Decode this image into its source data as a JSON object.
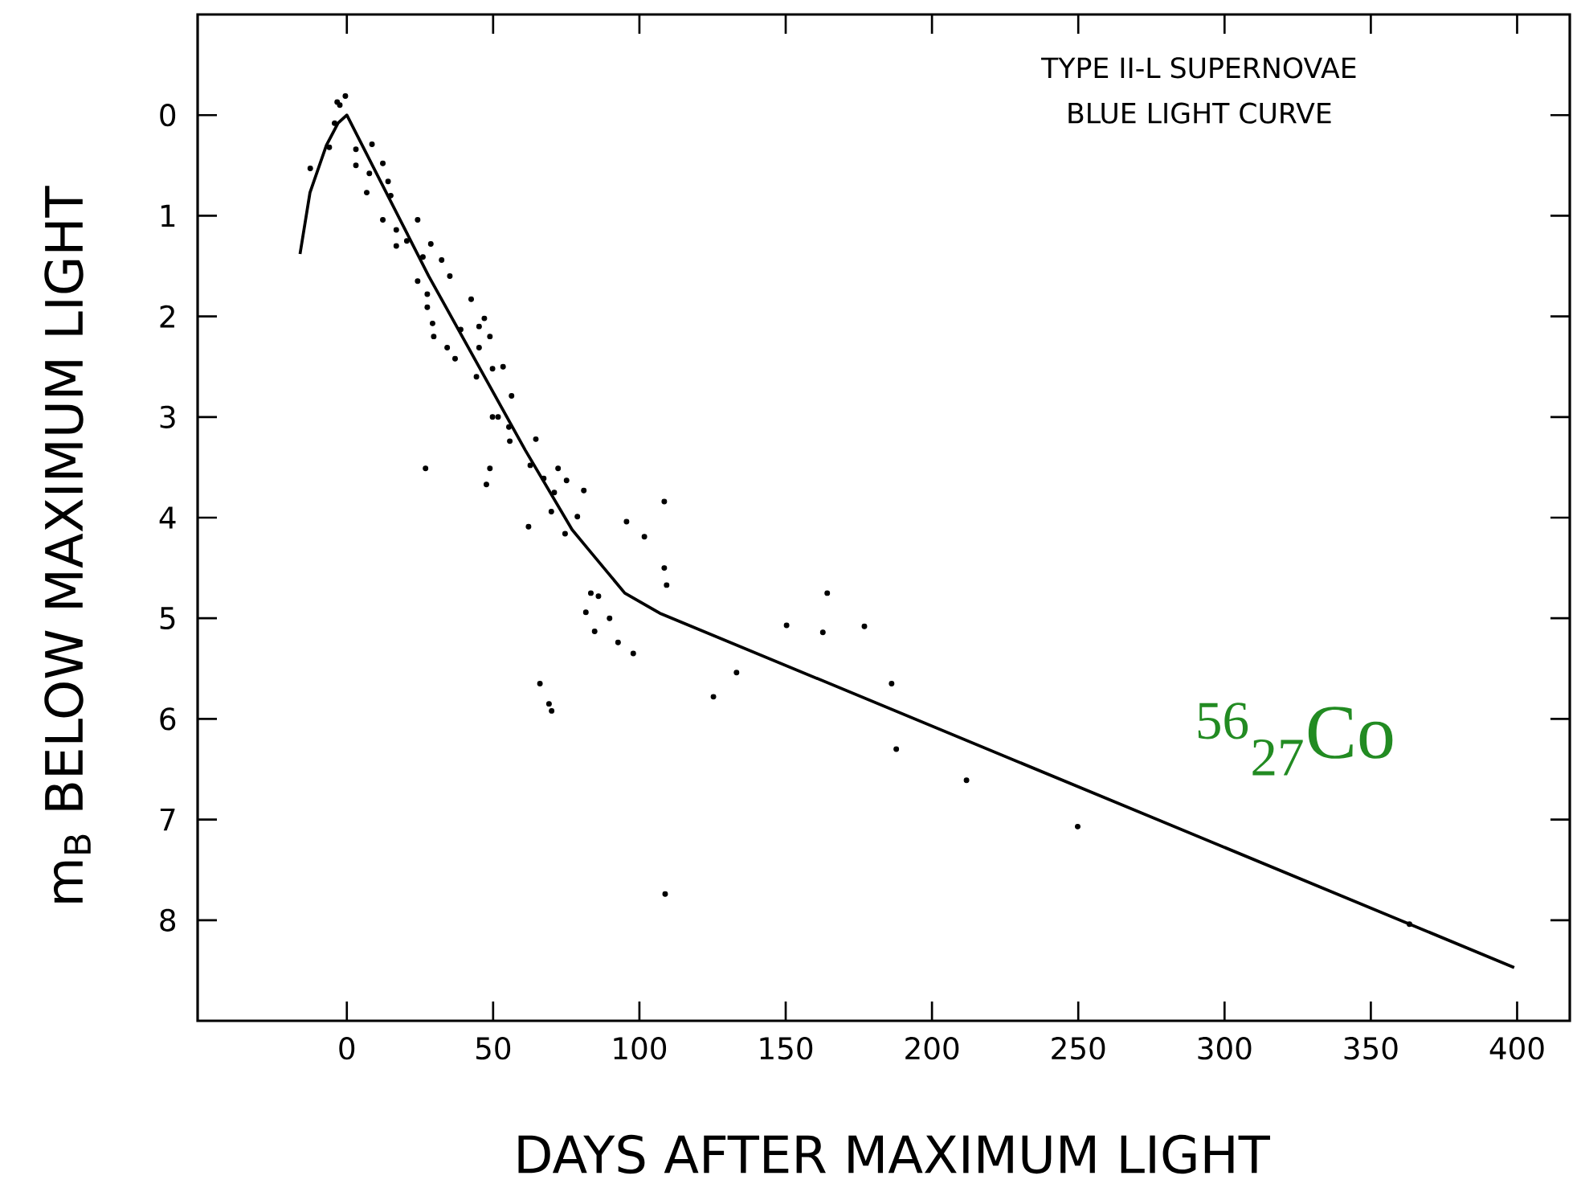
{
  "chart_data": {
    "type": "scatter",
    "title": "TYPE II-L SUPERNOVAE",
    "subtitle": "BLUE LIGHT CURVE",
    "xlabel": "DAYS AFTER MAXIMUM LIGHT",
    "ylabel": "m$_{B}$  BELOW  MAXIMUM  LIGHT",
    "annotations": [
      "$^{56}$$_{27}$Co"
    ],
    "xlim": [
      -51,
      418
    ],
    "ylim": [
      9,
      -1
    ],
    "xticks": [
      0,
      50,
      100,
      150,
      200,
      250,
      300,
      350,
      400
    ],
    "yticks": [
      0,
      1,
      2,
      3,
      4,
      5,
      6,
      7,
      8
    ],
    "series": [
      {
        "color": "#000000",
        "marker": "circle",
        "x": [
          -3.3,
          -0.5,
          -2.4,
          -12.5,
          -6,
          -4.2,
          3.1,
          3.1,
          8.6,
          7.7,
          6.8,
          12.3,
          14.1,
          15,
          12.3,
          16.9,
          24.2,
          16.9,
          20.5,
          28.7,
          26,
          24.2,
          32.4,
          35.2,
          27.5,
          29.3,
          42.5,
          47,
          45.2,
          48.9,
          29.7,
          34.3,
          38.9,
          27.5,
          37,
          45.2,
          49.8,
          53.4,
          44.3,
          56.3,
          49.8,
          51.7,
          55.4,
          55.7,
          64.6,
          26.9,
          48.9,
          47.7,
          62.7,
          67.3,
          72.2,
          75.1,
          70.9,
          81,
          69.9,
          62.1,
          78.8,
          74.6,
          95.6,
          101.7,
          108.5,
          108.5,
          109.3,
          83.4,
          86,
          81.7,
          89.8,
          84.7,
          92.7,
          97.9,
          66,
          69.1,
          70,
          133.2,
          125.3,
          108.8,
          150.3,
          164.2,
          162.7,
          176.9,
          186.2,
          187.8,
          211.8,
          249.8,
          363.2
        ],
        "values": [
          -0.13,
          -0.19,
          -0.1,
          0.53,
          0.32,
          0.08,
          0.34,
          0.5,
          0.29,
          0.58,
          0.77,
          0.48,
          0.66,
          0.8,
          1.04,
          1.14,
          1.04,
          1.3,
          1.25,
          1.28,
          1.41,
          1.65,
          1.44,
          1.6,
          1.91,
          2.07,
          1.83,
          2.02,
          2.1,
          2.2,
          2.2,
          2.31,
          2.13,
          1.78,
          2.42,
          2.31,
          2.52,
          2.5,
          2.6,
          2.79,
          3.0,
          3.0,
          3.1,
          3.24,
          3.22,
          3.51,
          3.51,
          3.67,
          3.48,
          3.61,
          3.51,
          3.63,
          3.75,
          3.73,
          3.94,
          4.09,
          3.99,
          4.16,
          4.04,
          4.19,
          3.84,
          4.5,
          4.67,
          4.75,
          4.78,
          4.94,
          5.0,
          5.13,
          5.24,
          5.35,
          5.65,
          5.85,
          5.92,
          5.54,
          5.78,
          7.74,
          5.07,
          4.75,
          5.14,
          5.08,
          5.65,
          6.3,
          6.61,
          7.07,
          8.04
        ]
      },
      {
        "type": "line",
        "color": "#000000",
        "marker": "none",
        "x": [
          -16,
          -12.6,
          -7,
          -3,
          0,
          28,
          61,
          77,
          83,
          95,
          107,
          399
        ],
        "values": [
          1.38,
          0.77,
          0.3,
          0.08,
          0,
          1.6,
          3.33,
          4.12,
          4.33,
          4.75,
          4.95,
          8.47
        ]
      }
    ]
  }
}
